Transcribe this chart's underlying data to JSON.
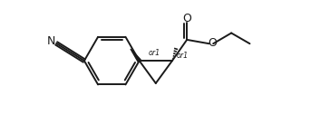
{
  "bg_color": "#ffffff",
  "line_color": "#1a1a1a",
  "line_width": 1.4,
  "font_size": 7.5,
  "figsize": [
    3.64,
    1.48
  ],
  "dpi": 100,
  "N_label": "N",
  "or1_label": "or1",
  "O_label": "O",
  "xlim": [
    0.0,
    10.5
  ],
  "ylim": [
    0.5,
    4.2
  ]
}
